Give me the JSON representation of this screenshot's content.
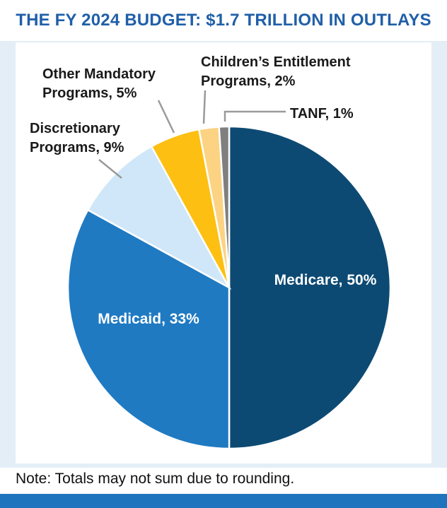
{
  "colors": {
    "title": "#1f5fa8",
    "panel": "#e3eef7",
    "bar": "#1f75bd"
  },
  "note": "Note: Totals may not sum due to rounding.",
  "chart_data": {
    "type": "pie",
    "title": "THE FY 2024 BUDGET: $1.7 TRILLION IN OUTLAYS",
    "slices": [
      {
        "label_lines": [
          "Medicare, 50%"
        ],
        "value": 50,
        "color": "#0d4a73",
        "label_inside": true,
        "label_color": "#ffffff"
      },
      {
        "label_lines": [
          "Medicaid, 33%"
        ],
        "value": 33,
        "color": "#1f7ac2",
        "label_inside": true,
        "label_color": "#ffffff"
      },
      {
        "label_lines": [
          "Discretionary",
          "Programs, 9%"
        ],
        "value": 9,
        "color": "#cfe7f8",
        "label_inside": false,
        "label_color": "#1a1a1a"
      },
      {
        "label_lines": [
          "Other Mandatory",
          "Programs, 5%"
        ],
        "value": 5,
        "color": "#fdbf11",
        "label_inside": false,
        "label_color": "#1a1a1a"
      },
      {
        "label_lines": [
          "Children’s Entitlement",
          "Programs, 2%"
        ],
        "value": 2,
        "color": "#fcd383",
        "label_inside": false,
        "label_color": "#1a1a1a"
      },
      {
        "label_lines": [
          "TANF, 1%"
        ],
        "value": 1,
        "color": "#7f7f7f",
        "label_inside": false,
        "label_color": "#1a1a1a"
      }
    ]
  }
}
